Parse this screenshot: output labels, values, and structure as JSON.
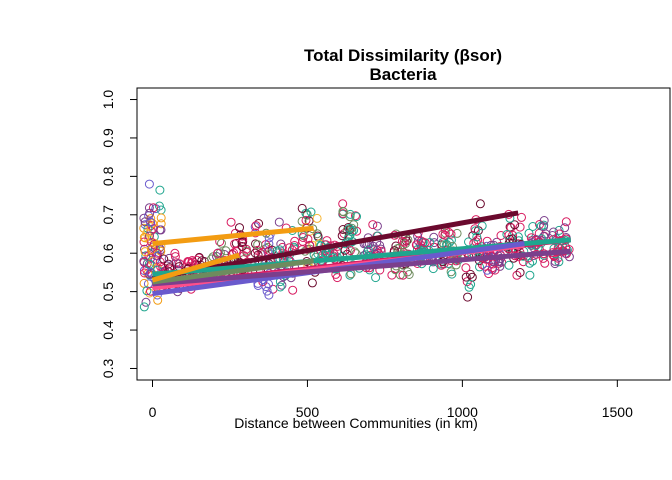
{
  "chart_data": {
    "type": "scatter",
    "title": "Total Dissimilarity (βsor)",
    "subtitle": "Bacteria",
    "xlabel": "Distance between Communities (in km)",
    "ylabel": "",
    "xlim": [
      -50,
      1670
    ],
    "ylim": [
      0.27,
      1.03
    ],
    "x_ticks": [
      0,
      500,
      1000,
      1500
    ],
    "y_ticks": [
      0.3,
      0.4,
      0.5,
      0.6,
      0.7,
      0.8,
      0.9,
      1.0
    ],
    "x_tick_labels": [
      "0",
      "500",
      "1000",
      "1500"
    ],
    "y_tick_labels": [
      "0.3",
      "0.4",
      "0.5",
      "0.6",
      "0.7",
      "0.8",
      "0.9",
      "1.0"
    ],
    "grid": false,
    "colors": {
      "maroon": "#6B0A2E",
      "crimson": "#D81B60",
      "pink": "#FF4F8B",
      "purple": "#7B3F8C",
      "violet": "#6A5ACD",
      "teal": "#1FA58E",
      "sage": "#6E8B5E",
      "orange": "#F39C12",
      "yellow": "#F7B531"
    },
    "point_columns": [
      {
        "x": 0,
        "ymin": 0.4,
        "ymax": 0.83,
        "colors": [
          "yellow",
          "orange",
          "teal",
          "violet",
          "purple",
          "crimson"
        ]
      },
      {
        "x": 60,
        "ymin": 0.48,
        "ymax": 0.62,
        "colors": [
          "crimson",
          "maroon",
          "purple"
        ]
      },
      {
        "x": 140,
        "ymin": 0.49,
        "ymax": 0.61,
        "colors": [
          "crimson",
          "maroon"
        ]
      },
      {
        "x": 210,
        "ymin": 0.49,
        "ymax": 0.64,
        "colors": [
          "crimson",
          "sage",
          "purple"
        ]
      },
      {
        "x": 280,
        "ymin": 0.5,
        "ymax": 0.7,
        "colors": [
          "crimson",
          "maroon",
          "sage"
        ]
      },
      {
        "x": 360,
        "ymin": 0.46,
        "ymax": 0.7,
        "colors": [
          "crimson",
          "violet",
          "maroon",
          "sage"
        ]
      },
      {
        "x": 430,
        "ymin": 0.48,
        "ymax": 0.7,
        "colors": [
          "crimson",
          "purple",
          "teal"
        ]
      },
      {
        "x": 510,
        "ymin": 0.5,
        "ymax": 0.79,
        "colors": [
          "sage",
          "teal",
          "crimson",
          "maroon",
          "yellow"
        ]
      },
      {
        "x": 570,
        "ymin": 0.51,
        "ymax": 0.67,
        "colors": [
          "teal",
          "crimson"
        ]
      },
      {
        "x": 640,
        "ymin": 0.49,
        "ymax": 0.79,
        "colors": [
          "maroon",
          "crimson",
          "sage",
          "teal"
        ]
      },
      {
        "x": 710,
        "ymin": 0.49,
        "ymax": 0.72,
        "colors": [
          "crimson",
          "teal",
          "purple"
        ]
      },
      {
        "x": 800,
        "ymin": 0.49,
        "ymax": 0.7,
        "colors": [
          "crimson",
          "maroon",
          "sage"
        ]
      },
      {
        "x": 880,
        "ymin": 0.54,
        "ymax": 0.67,
        "colors": [
          "crimson",
          "teal",
          "purple"
        ]
      },
      {
        "x": 960,
        "ymin": 0.52,
        "ymax": 0.69,
        "colors": [
          "crimson",
          "sage",
          "teal",
          "maroon"
        ]
      },
      {
        "x": 1040,
        "ymin": 0.45,
        "ymax": 0.74,
        "colors": [
          "crimson",
          "teal",
          "maroon"
        ]
      },
      {
        "x": 1100,
        "ymin": 0.53,
        "ymax": 0.66,
        "colors": [
          "crimson",
          "violet",
          "purple"
        ]
      },
      {
        "x": 1170,
        "ymin": 0.51,
        "ymax": 0.72,
        "colors": [
          "crimson",
          "teal",
          "maroon"
        ]
      },
      {
        "x": 1240,
        "ymin": 0.51,
        "ymax": 0.74,
        "colors": [
          "teal",
          "crimson",
          "purple"
        ]
      },
      {
        "x": 1320,
        "ymin": 0.55,
        "ymax": 0.7,
        "colors": [
          "crimson",
          "purple",
          "teal"
        ]
      }
    ],
    "series": [
      {
        "color": "maroon",
        "x": [
          0,
          1180
        ],
        "y": [
          0.535,
          0.705
        ]
      },
      {
        "color": "crimson",
        "x": [
          0,
          1350
        ],
        "y": [
          0.515,
          0.635
        ]
      },
      {
        "color": "pink",
        "x": [
          0,
          1200
        ],
        "y": [
          0.51,
          0.62
        ]
      },
      {
        "color": "teal",
        "x": [
          0,
          1350
        ],
        "y": [
          0.545,
          0.635
        ]
      },
      {
        "color": "violet",
        "x": [
          0,
          1200
        ],
        "y": [
          0.495,
          0.625
        ]
      },
      {
        "color": "purple",
        "x": [
          0,
          1350
        ],
        "y": [
          0.52,
          0.605
        ]
      },
      {
        "color": "sage",
        "x": [
          0,
          520
        ],
        "y": [
          0.525,
          0.58
        ]
      },
      {
        "color": "orange",
        "x": [
          0,
          520
        ],
        "y": [
          0.625,
          0.665
        ]
      },
      {
        "color": "orange",
        "x": [
          0,
          280
        ],
        "y": [
          0.53,
          0.595
        ]
      }
    ]
  }
}
